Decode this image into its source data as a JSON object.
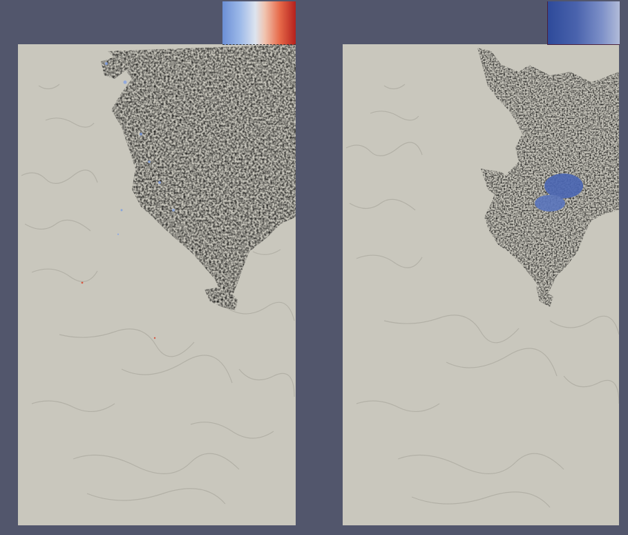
{
  "views": [
    {
      "id": "left",
      "colormap": "cool-to-warm",
      "accent_low": "#6b8fd6",
      "accent_mid": "#dde4ef",
      "accent_high": "#d6452d"
    },
    {
      "id": "right",
      "colormap": "blues",
      "accent_low": "#2e4a9a",
      "accent_high": "#b1bbd9"
    }
  ],
  "colors": {
    "background": "#52566c",
    "terrain": "#c9c7bd",
    "terrain_ridge": "#a9a79e"
  }
}
